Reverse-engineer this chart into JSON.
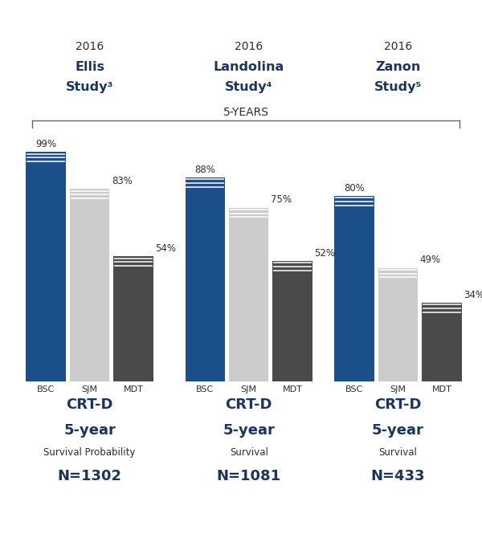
{
  "title": "5-YEARS",
  "studies": [
    {
      "year": "2016",
      "name_line1": "Ellis",
      "name_line2": "Study³",
      "bars": [
        {
          "label": "BSC",
          "value": 99,
          "color": "#1b4f8a"
        },
        {
          "label": "SJM",
          "value": 83,
          "color": "#cccccc"
        },
        {
          "label": "MDT",
          "value": 54,
          "color": "#4a4a4a"
        }
      ],
      "subtitle_lines": [
        "CRT-D",
        "5-year",
        "Survival Probability",
        "N=1302"
      ]
    },
    {
      "year": "2016",
      "name_line1": "Landolina",
      "name_line2": "Study⁴",
      "bars": [
        {
          "label": "BSC",
          "value": 88,
          "color": "#1b4f8a"
        },
        {
          "label": "SJM",
          "value": 75,
          "color": "#cccccc"
        },
        {
          "label": "MDT",
          "value": 52,
          "color": "#4a4a4a"
        }
      ],
      "subtitle_lines": [
        "CRT-D",
        "5-year",
        "Survival",
        "N=1081"
      ]
    },
    {
      "year": "2016",
      "name_line1": "Zanon",
      "name_line2": "Study⁵",
      "bars": [
        {
          "label": "BSC",
          "value": 80,
          "color": "#1b4f8a"
        },
        {
          "label": "SJM",
          "value": 49,
          "color": "#cccccc"
        },
        {
          "label": "MDT",
          "value": 34,
          "color": "#4a4a4a"
        }
      ],
      "subtitle_lines": [
        "CRT-D",
        "5-year",
        "Survival",
        "N=433"
      ]
    }
  ],
  "bg_color": "#ffffff",
  "text_dark": "#2d2d2d",
  "text_blue": "#1a3560",
  "bar_width": 0.2,
  "group_centers": [
    0.38,
    1.18,
    1.93
  ],
  "bar_offsets": [
    -0.22,
    0.0,
    0.22
  ],
  "ylim_max": 115
}
